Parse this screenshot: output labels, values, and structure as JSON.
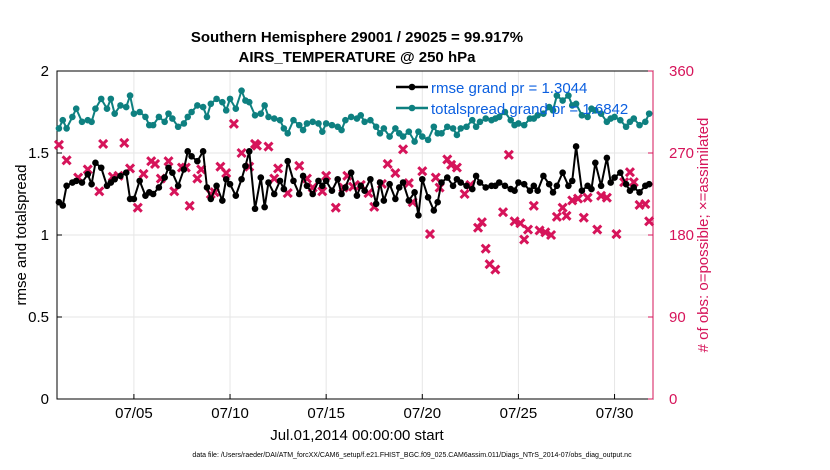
{
  "chart_data": {
    "type": "line",
    "title": "Southern Hemisphere 29001 / 29025 = 99.917%",
    "subtitle": "AIRS_TEMPERATURE @ 250 hPa",
    "xlabel": "Jul.01,2014 00:00:00 start",
    "ylabel": "rmse and totalspread",
    "y2label": "# of obs: o=possible; ×=assimilated",
    "xlim": [
      1,
      32
    ],
    "ylim": [
      0,
      2
    ],
    "y2lim": [
      0,
      360
    ],
    "xticks": [
      5,
      10,
      15,
      20,
      25,
      30
    ],
    "xtick_labels": [
      "07/05",
      "07/10",
      "07/15",
      "07/20",
      "07/25",
      "07/30"
    ],
    "yticks": [
      0,
      0.5,
      1,
      1.5,
      2
    ],
    "ytick_labels": [
      "0",
      "0.5",
      "1",
      "1.5",
      "2"
    ],
    "y2ticks": [
      0,
      90,
      180,
      270,
      360
    ],
    "y2tick_labels": [
      "0",
      "90",
      "180",
      "270",
      "360"
    ],
    "grid": true,
    "legend_position": "top-right",
    "colors": {
      "rmse": "#000000",
      "spread": "#0e8080",
      "obs": "#d6145a",
      "legend_text": "#0b5fe0",
      "grid": "#e6e6e6"
    },
    "x": [
      1.1,
      1.3,
      1.5,
      1.8,
      2.0,
      2.3,
      2.6,
      2.8,
      3.0,
      3.3,
      3.6,
      3.8,
      4.0,
      4.3,
      4.6,
      4.8,
      5.0,
      5.3,
      5.6,
      5.8,
      6.0,
      6.3,
      6.6,
      6.8,
      7.0,
      7.3,
      7.6,
      7.8,
      8.0,
      8.3,
      8.6,
      8.8,
      9.0,
      9.3,
      9.6,
      9.8,
      10.0,
      10.3,
      10.6,
      10.8,
      11.0,
      11.3,
      11.6,
      11.8,
      12.0,
      12.3,
      12.6,
      12.8,
      13.0,
      13.3,
      13.6,
      13.8,
      14.0,
      14.3,
      14.6,
      14.8,
      15.0,
      15.3,
      15.6,
      15.8,
      16.0,
      16.3,
      16.6,
      16.8,
      17.0,
      17.3,
      17.6,
      17.8,
      18.0,
      18.3,
      18.6,
      18.8,
      19.0,
      19.3,
      19.6,
      19.8,
      20.0,
      20.3,
      20.6,
      20.8,
      21.0,
      21.3,
      21.6,
      21.8,
      22.0,
      22.3,
      22.6,
      22.8,
      23.0,
      23.3,
      23.6,
      23.8,
      24.0,
      24.3,
      24.6,
      24.8,
      25.0,
      25.3,
      25.6,
      25.8,
      26.0,
      26.3,
      26.6,
      26.8,
      27.0,
      27.3,
      27.6,
      27.8,
      28.0,
      28.3,
      28.6,
      28.8,
      29.0,
      29.3,
      29.6,
      29.8,
      30.0,
      30.3,
      30.6,
      30.8,
      31.0,
      31.3,
      31.6,
      31.8
    ],
    "series": [
      {
        "name": "rmse grand pr = 1.3044",
        "marker": "circle",
        "values": [
          1.2,
          1.18,
          1.3,
          1.32,
          1.33,
          1.32,
          1.37,
          1.31,
          1.44,
          1.41,
          1.3,
          1.32,
          1.34,
          1.36,
          1.38,
          1.22,
          1.22,
          1.33,
          1.24,
          1.26,
          1.25,
          1.29,
          1.35,
          1.41,
          1.38,
          1.3,
          1.4,
          1.51,
          1.48,
          1.45,
          1.51,
          1.29,
          1.22,
          1.3,
          1.21,
          1.34,
          1.31,
          1.24,
          1.34,
          1.42,
          1.51,
          1.16,
          1.35,
          1.17,
          1.32,
          1.25,
          1.33,
          1.28,
          1.45,
          1.33,
          1.25,
          1.36,
          1.3,
          1.25,
          1.33,
          1.3,
          1.33,
          1.27,
          1.34,
          1.25,
          1.29,
          1.38,
          1.24,
          1.3,
          1.27,
          1.34,
          1.19,
          1.32,
          1.21,
          1.31,
          1.22,
          1.29,
          1.32,
          1.21,
          1.26,
          1.12,
          1.34,
          1.23,
          1.15,
          1.2,
          1.32,
          1.35,
          1.3,
          1.34,
          1.32,
          1.3,
          1.28,
          1.36,
          1.32,
          1.29,
          1.3,
          1.3,
          1.32,
          1.3,
          1.28,
          1.27,
          1.32,
          1.31,
          1.27,
          1.3,
          1.27,
          1.36,
          1.31,
          1.26,
          1.3,
          1.38,
          1.3,
          1.33,
          1.54,
          1.27,
          1.3,
          1.28,
          1.44,
          1.3,
          1.47,
          1.32,
          1.35,
          1.38,
          1.31,
          1.27,
          1.29,
          1.26,
          1.3,
          1.31
        ]
      },
      {
        "name": "totalspread grand pr = 1.6842",
        "marker": "circle",
        "values": [
          1.65,
          1.7,
          1.65,
          1.72,
          1.77,
          1.69,
          1.7,
          1.69,
          1.77,
          1.83,
          1.77,
          1.83,
          1.74,
          1.79,
          1.78,
          1.85,
          1.74,
          1.75,
          1.72,
          1.67,
          1.67,
          1.72,
          1.69,
          1.74,
          1.71,
          1.66,
          1.68,
          1.72,
          1.75,
          1.79,
          1.78,
          1.72,
          1.8,
          1.83,
          1.81,
          1.76,
          1.83,
          1.77,
          1.88,
          1.82,
          1.81,
          1.73,
          1.74,
          1.79,
          1.72,
          1.71,
          1.7,
          1.65,
          1.62,
          1.7,
          1.67,
          1.64,
          1.68,
          1.69,
          1.68,
          1.63,
          1.68,
          1.67,
          1.66,
          1.64,
          1.7,
          1.72,
          1.71,
          1.73,
          1.69,
          1.7,
          1.66,
          1.62,
          1.65,
          1.6,
          1.65,
          1.62,
          1.6,
          1.63,
          1.57,
          1.63,
          1.6,
          1.58,
          1.66,
          1.62,
          1.62,
          1.66,
          1.65,
          1.61,
          1.65,
          1.66,
          1.7,
          1.66,
          1.69,
          1.71,
          1.7,
          1.71,
          1.72,
          1.75,
          1.7,
          1.67,
          1.68,
          1.67,
          1.71,
          1.71,
          1.73,
          1.74,
          1.78,
          1.76,
          1.85,
          1.82,
          1.85,
          1.79,
          1.8,
          1.73,
          1.72,
          1.77,
          1.76,
          1.74,
          1.69,
          1.71,
          1.72,
          1.7,
          1.66,
          1.69,
          1.71,
          1.67,
          1.69,
          1.74
        ]
      }
    ],
    "obs_assimilated": {
      "x": [
        1.1,
        1.5,
        2.1,
        2.6,
        3.2,
        3.4,
        3.9,
        4.2,
        4.5,
        4.8,
        5.2,
        5.5,
        5.9,
        6.1,
        6.4,
        6.8,
        7.1,
        7.5,
        7.7,
        7.9,
        8.3,
        8.5,
        9.0,
        9.2,
        9.5,
        9.8,
        10.2,
        10.6,
        11.0,
        11.3,
        11.4,
        12.0,
        12.3,
        12.5,
        13.0,
        13.6,
        14.0,
        14.3,
        14.8,
        15.0,
        15.5,
        15.9,
        16.1,
        16.4,
        16.8,
        17.2,
        17.5,
        17.9,
        18.2,
        18.6,
        19.0,
        19.3,
        19.5,
        20.0,
        20.4,
        20.7,
        20.9,
        21.3,
        21.5,
        21.8,
        22.2,
        22.5,
        22.9,
        23.1,
        23.3,
        23.5,
        23.8,
        24.2,
        24.5,
        24.8,
        25.1,
        25.3,
        25.5,
        25.8,
        26.1,
        26.4,
        26.7,
        27.0,
        27.3,
        27.5,
        27.8,
        28.1,
        28.4,
        28.6,
        29.1,
        29.3,
        29.6,
        30.1,
        30.5,
        30.8,
        31.0,
        31.3,
        31.6,
        31.8
      ],
      "values": [
        279,
        262,
        243,
        252,
        228,
        280,
        244,
        245,
        281,
        253,
        210,
        247,
        261,
        258,
        242,
        261,
        228,
        254,
        254,
        212,
        242,
        252,
        225,
        227,
        255,
        248,
        302,
        270,
        255,
        280,
        278,
        277,
        242,
        253,
        226,
        256,
        242,
        232,
        228,
        245,
        210,
        232,
        245,
        233,
        235,
        226,
        211,
        236,
        258,
        248,
        274,
        237,
        216,
        250,
        181,
        243,
        232,
        263,
        257,
        254,
        225,
        235,
        188,
        194,
        165,
        148,
        142,
        205,
        268,
        195,
        193,
        175,
        186,
        212,
        185,
        183,
        180,
        200,
        210,
        201,
        218,
        220,
        199,
        221,
        186,
        223,
        221,
        181,
        238,
        249,
        238,
        213,
        214,
        195
      ]
    },
    "annotation": "data file: /Users/raeder/DAI/ATM_forcXX/CAM6_setup/f.e21.FHIST_BGC.f09_025.CAM6assim.011/Diags_NTrS_2014-07/obs_diag_output.nc"
  }
}
